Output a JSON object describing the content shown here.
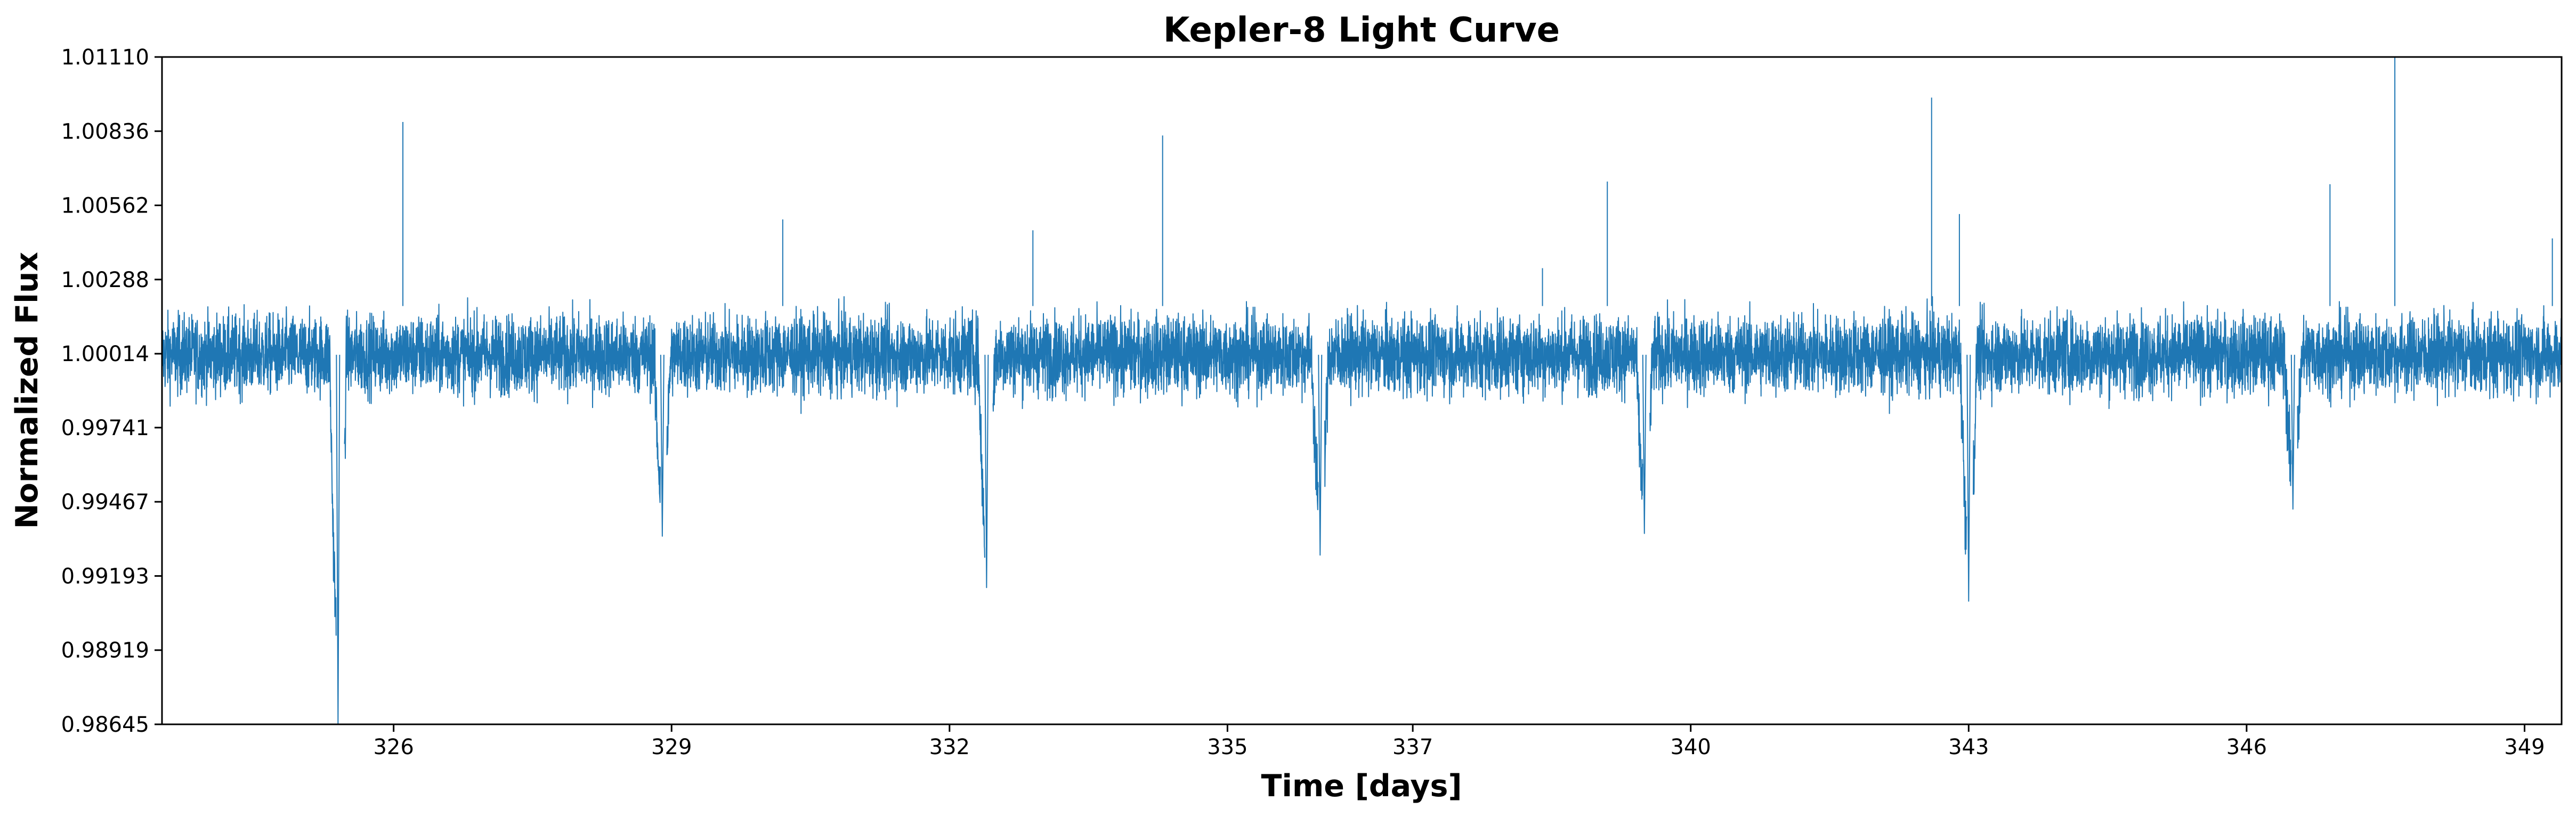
{
  "chart_data": {
    "type": "line",
    "title": "Kepler-8 Light Curve",
    "xlabel": "Time [days]",
    "ylabel": "Normalized Flux",
    "xlim": [
      323.5,
      349.4
    ],
    "ylim": [
      0.98645,
      1.0111
    ],
    "x_ticks": [
      {
        "value": 326.0,
        "label": "326"
      },
      {
        "value": 329.0,
        "label": "329"
      },
      {
        "value": 332.0,
        "label": "332"
      },
      {
        "value": 335.0,
        "label": "335"
      },
      {
        "value": 337.0,
        "label": "337"
      },
      {
        "value": 340.0,
        "label": "340"
      },
      {
        "value": 343.0,
        "label": "343"
      },
      {
        "value": 346.0,
        "label": "346"
      },
      {
        "value": 349.0,
        "label": "349"
      }
    ],
    "y_ticks": [
      {
        "value": 0.98645,
        "label": "0.98645"
      },
      {
        "value": 0.98919,
        "label": "0.98919"
      },
      {
        "value": 0.99193,
        "label": "0.99193"
      },
      {
        "value": 0.99467,
        "label": "0.99467"
      },
      {
        "value": 0.99741,
        "label": "0.99741"
      },
      {
        "value": 1.00014,
        "label": "1.00014"
      },
      {
        "value": 1.00288,
        "label": "1.00288"
      },
      {
        "value": 1.00562,
        "label": "1.00562"
      },
      {
        "value": 1.00836,
        "label": "1.00836"
      },
      {
        "value": 1.0111,
        "label": "1.01110"
      }
    ],
    "grid": false,
    "series": [
      {
        "color": "#1f77b4",
        "baseline_flux": 1.0001,
        "scatter_band": [
          0.998,
          1.0023
        ],
        "transits": [
          {
            "center_time": 325.4,
            "gap": [
              325.38,
              325.47
            ],
            "min_flux": 0.98645
          },
          {
            "center_time": 328.9,
            "gap": [
              328.88,
              328.95
            ],
            "min_flux": 0.9934
          },
          {
            "center_time": 332.4,
            "gap": [
              332.38,
              332.47
            ],
            "min_flux": 0.9915
          },
          {
            "center_time": 336.0,
            "gap": [
              335.98,
              336.05
            ],
            "min_flux": 0.9927
          },
          {
            "center_time": 339.5,
            "gap": [
              339.48,
              339.56
            ],
            "min_flux": 0.9935
          },
          {
            "center_time": 343.0,
            "gap": [
              342.98,
              343.05
            ],
            "min_flux": 0.991
          },
          {
            "center_time": 346.5,
            "gap": [
              346.48,
              346.55
            ],
            "min_flux": 0.9944
          }
        ],
        "spikes": [
          {
            "time": 326.1,
            "flux": 1.0087
          },
          {
            "time": 330.2,
            "flux": 1.0051
          },
          {
            "time": 332.9,
            "flux": 1.0047
          },
          {
            "time": 334.3,
            "flux": 1.0082
          },
          {
            "time": 338.4,
            "flux": 1.0033
          },
          {
            "time": 339.1,
            "flux": 1.0065
          },
          {
            "time": 342.6,
            "flux": 1.0096
          },
          {
            "time": 342.9,
            "flux": 1.0053
          },
          {
            "time": 346.9,
            "flux": 1.0064
          },
          {
            "time": 347.6,
            "flux": 1.0111
          },
          {
            "time": 349.3,
            "flux": 1.0044
          }
        ]
      }
    ]
  }
}
